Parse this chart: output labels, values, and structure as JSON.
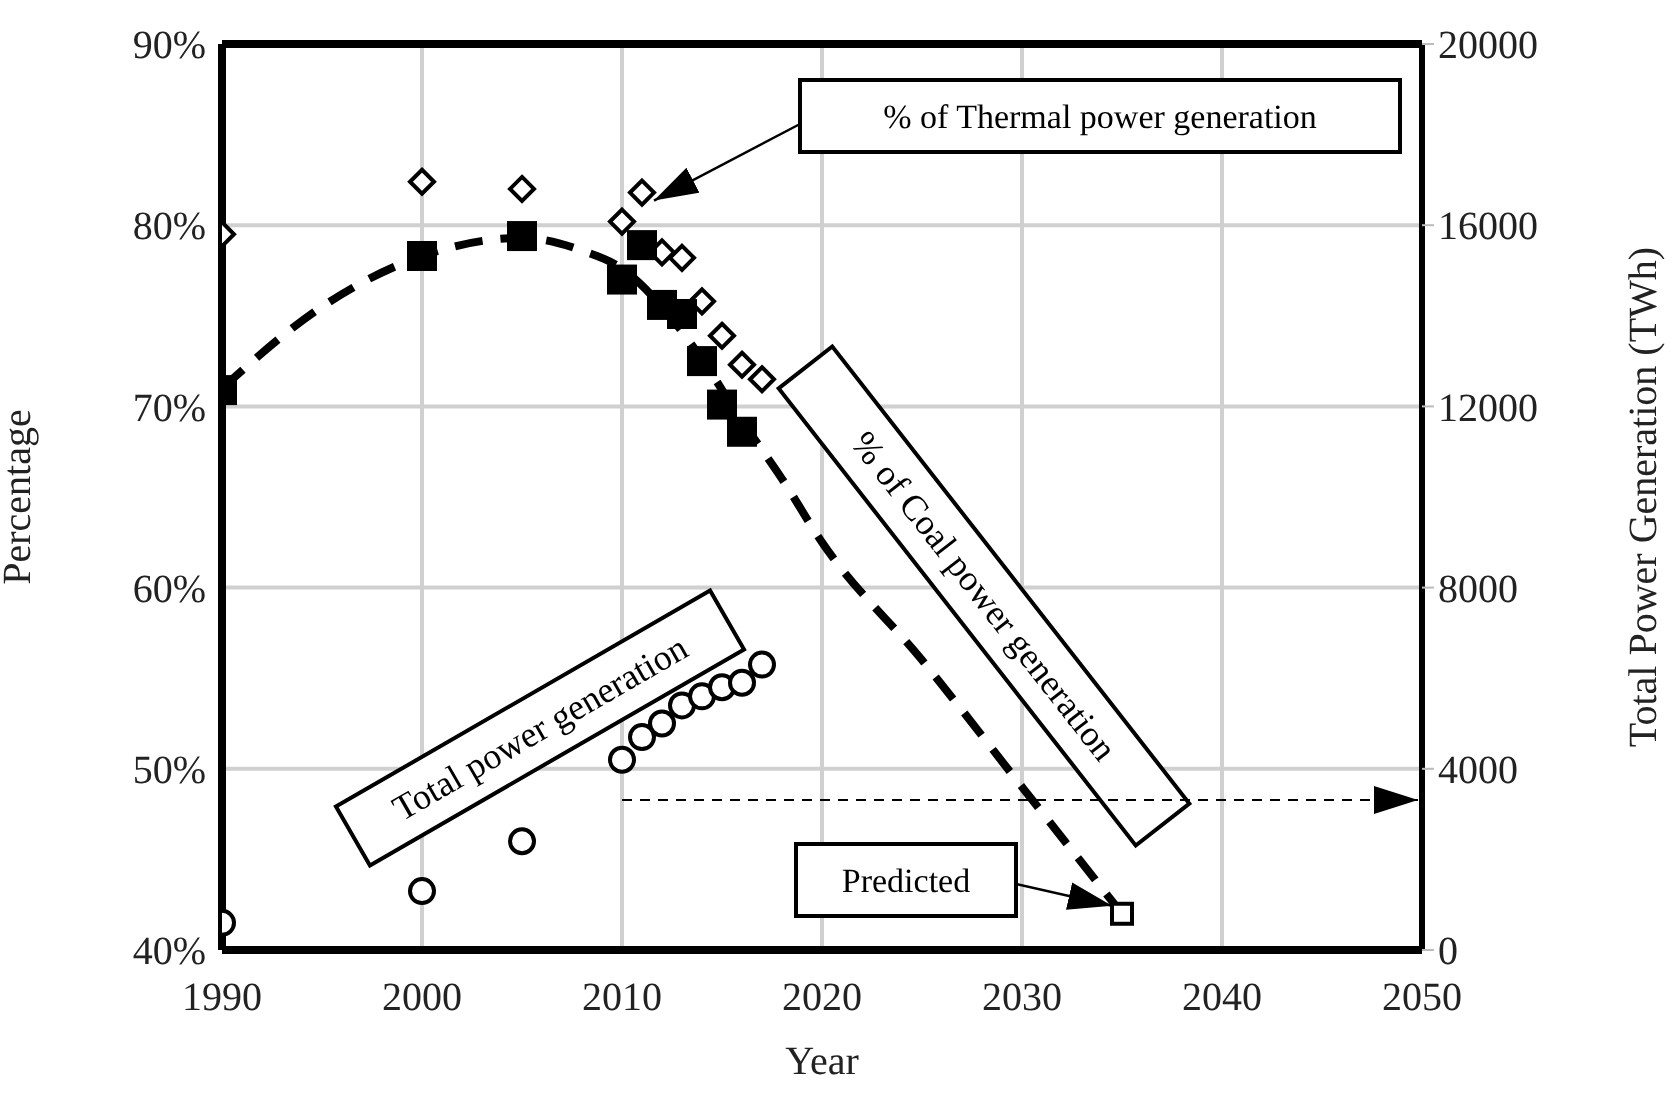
{
  "chart_data": {
    "type": "scatter",
    "xlabel": "Year",
    "ylabel": "Percentage",
    "y2label": "Total Power Generation (TWh)",
    "xlim": [
      1990,
      2050
    ],
    "xticks": [
      1990,
      2000,
      2010,
      2020,
      2030,
      2040,
      2050
    ],
    "ylim": [
      40,
      90
    ],
    "yticks": [
      {
        "value": 40,
        "label": "40%"
      },
      {
        "value": 50,
        "label": "50%"
      },
      {
        "value": 60,
        "label": "60%"
      },
      {
        "value": 70,
        "label": "70%"
      },
      {
        "value": 80,
        "label": "80%"
      },
      {
        "value": 90,
        "label": "90%"
      }
    ],
    "y2lim": [
      0,
      20000
    ],
    "y2ticks": [
      0,
      4000,
      8000,
      12000,
      16000,
      20000
    ],
    "grid": true,
    "legend": false,
    "series": [
      {
        "marker": "diamond",
        "color": "#000000",
        "x": [
          1990,
          2000,
          2005,
          2010,
          2011,
          2012,
          2013,
          2014,
          2015,
          2016,
          2017
        ],
        "values": [
          79.5,
          82.4,
          82.0,
          80.2,
          81.8,
          78.5,
          78.2,
          75.8,
          73.9,
          72.3,
          71.5
        ]
      },
      {
        "marker": "square",
        "color": "#000000",
        "x": [
          1990,
          2000,
          2005,
          2010,
          2011,
          2012,
          2013,
          2014,
          2015,
          2016
        ],
        "values": [
          70.9,
          78.3,
          79.4,
          77.0,
          78.9,
          75.6,
          75.1,
          72.5,
          70.1,
          68.6
        ]
      },
      {
        "marker": "circle",
        "color": "#000000",
        "axis": "y2",
        "x": [
          1990,
          2000,
          2005,
          2010,
          2011,
          2012,
          2013,
          2014,
          2015,
          2016,
          2017
        ],
        "values": [
          600,
          1300,
          2400,
          4200,
          4700,
          5000,
          5400,
          5600,
          5800,
          5900,
          6300
        ]
      },
      {
        "marker": "square",
        "color": "#000000",
        "x": [
          2035
        ],
        "values": [
          42.0
        ]
      },
      {
        "type": "line",
        "marker": "none",
        "line_style": "dashed",
        "color": "#000000",
        "x": [
          1990,
          1995,
          2000,
          2005,
          2008,
          2010,
          2012,
          2014,
          2016,
          2018,
          2020,
          2025,
          2030,
          2035
        ],
        "values": [
          71.0,
          75.5,
          78.3,
          79.3,
          78.6,
          77.6,
          75.5,
          72.6,
          69.2,
          66.0,
          62.5,
          56.0,
          49.0,
          42.0
        ]
      }
    ],
    "annotations": [
      "% of Thermal power generation",
      "% of Coal power generation",
      "Total power generation",
      "Predicted"
    ]
  }
}
